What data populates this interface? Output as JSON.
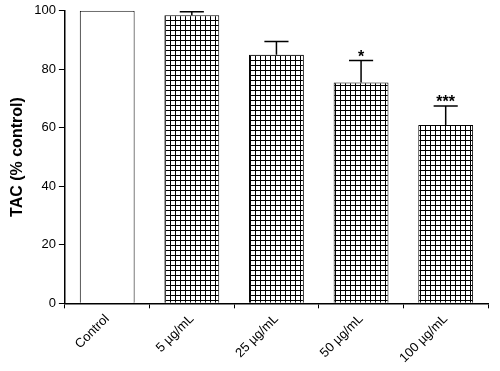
{
  "chart_data": {
    "type": "bar",
    "y_label": "TAC (% control)",
    "categories": [
      "Control",
      "5 µg/mL",
      "25 µg/mL",
      "50 µg/mL",
      "100 µg/mL"
    ],
    "values": [
      100,
      98.5,
      85,
      75.5,
      61
    ],
    "errors": [
      0,
      1.2,
      4.5,
      7.5,
      6.5
    ],
    "colors": [
      "#ffffff",
      "#000000",
      "#000000",
      "#000000",
      "#000000"
    ],
    "annotations": [
      {
        "category": "50 µg/mL",
        "text": "*"
      },
      {
        "category": "100 µg/mL",
        "text": "***"
      }
    ],
    "ylim": [
      0,
      100
    ],
    "yticks": [
      0,
      20,
      40,
      60,
      80,
      100
    ],
    "grid": false
  }
}
